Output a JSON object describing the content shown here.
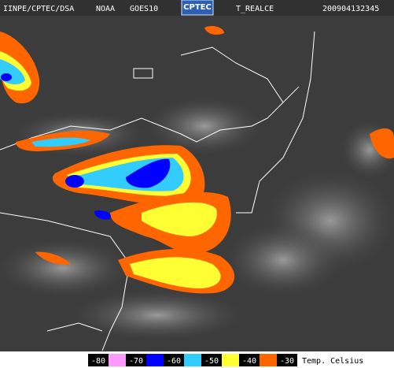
{
  "header": {
    "source": "IINPE/CPTEC/DSA",
    "agency": "NOAA",
    "satellite": "GOES10",
    "logo": "CPTEC",
    "product": "T_REALCE",
    "timestamp": "200904132345"
  },
  "legend": {
    "items": [
      {
        "label": "-80",
        "color": "#ff99ff"
      },
      {
        "label": "-70",
        "color": "#0000ff"
      },
      {
        "label": "-60",
        "color": "#33ccff"
      },
      {
        "label": "-50",
        "color": "#ffff33"
      },
      {
        "label": "-40",
        "color": "#ff6600"
      },
      {
        "label": "-30",
        "color": null
      }
    ],
    "unit": "Temp. Celsius"
  }
}
